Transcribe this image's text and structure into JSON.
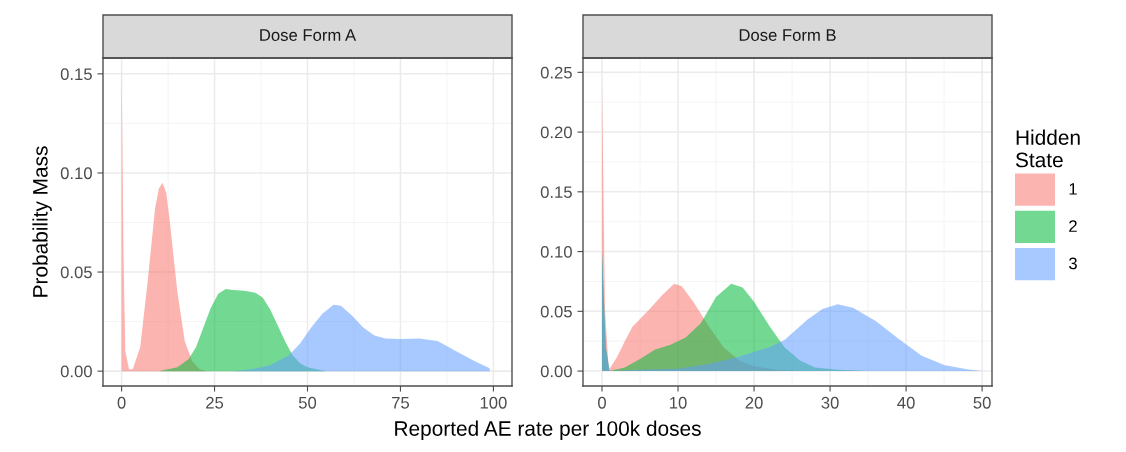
{
  "chart_data": [
    {
      "type": "area",
      "title": "Dose Form A",
      "xlabel": "Reported AE rate per 100k doses",
      "ylabel": "Probability Mass",
      "xlim": [
        -5,
        105
      ],
      "ylim": [
        -0.0075,
        0.158
      ],
      "xticks": [
        0,
        25,
        50,
        75,
        100
      ],
      "yticks": [
        {
          "value": 0,
          "label": "0.00"
        },
        {
          "value": 0.05,
          "label": "0.05"
        },
        {
          "value": 0.1,
          "label": "0.10"
        },
        {
          "value": 0.15,
          "label": "0.15"
        }
      ],
      "grid": true,
      "legend": "right",
      "legend_title": "Hidden State",
      "series": [
        {
          "name": "1",
          "color": "#f8766d",
          "x": [
            0,
            0.5,
            1,
            2,
            3,
            5,
            7,
            9,
            10,
            11,
            12,
            13,
            15,
            17,
            19,
            21,
            23,
            25
          ],
          "values": [
            0.155,
            0.06,
            0.01,
            0.001,
            0.001,
            0.012,
            0.045,
            0.082,
            0.092,
            0.095,
            0.09,
            0.075,
            0.04,
            0.015,
            0.005,
            0.001,
            0,
            0
          ]
        },
        {
          "name": "2",
          "color": "#00ba38",
          "x": [
            10,
            15,
            18,
            20,
            22,
            24,
            26,
            28,
            30,
            33,
            36,
            38,
            40,
            42,
            44,
            46,
            48,
            50,
            55
          ],
          "values": [
            0,
            0.002,
            0.006,
            0.012,
            0.022,
            0.032,
            0.039,
            0.0415,
            0.041,
            0.0405,
            0.0395,
            0.037,
            0.031,
            0.023,
            0.015,
            0.008,
            0.004,
            0.002,
            0
          ]
        },
        {
          "name": "3",
          "color": "#619cff",
          "x": [
            30,
            35,
            40,
            45,
            48,
            51,
            54,
            57,
            59,
            62,
            65,
            68,
            71,
            75,
            80,
            85,
            90,
            95,
            99
          ],
          "values": [
            0,
            0.001,
            0.003,
            0.008,
            0.014,
            0.022,
            0.029,
            0.0335,
            0.033,
            0.028,
            0.022,
            0.018,
            0.0165,
            0.0162,
            0.0165,
            0.0152,
            0.01,
            0.005,
            0.0015
          ]
        }
      ]
    },
    {
      "type": "area",
      "title": "Dose Form B",
      "xlim": [
        -2.5,
        51.3
      ],
      "ylim": [
        -0.0125,
        0.262
      ],
      "xticks": [
        0,
        10,
        20,
        30,
        40,
        50
      ],
      "yticks": [
        {
          "value": 0,
          "label": "0.00"
        },
        {
          "value": 0.05,
          "label": "0.05"
        },
        {
          "value": 0.1,
          "label": "0.10"
        },
        {
          "value": 0.15,
          "label": "0.15"
        },
        {
          "value": 0.2,
          "label": "0.20"
        },
        {
          "value": 0.25,
          "label": "0.25"
        }
      ],
      "grid": true,
      "legend": false,
      "series": [
        {
          "name": "1",
          "color": "#f8766d",
          "x": [
            0,
            0.4,
            0.9,
            1,
            2,
            3,
            4,
            6,
            8,
            9.5,
            10.5,
            12,
            14,
            16,
            18,
            20,
            23,
            26
          ],
          "values": [
            0.24,
            0.05,
            0,
            0.002,
            0.012,
            0.025,
            0.037,
            0.05,
            0.064,
            0.073,
            0.071,
            0.058,
            0.038,
            0.02,
            0.009,
            0.004,
            0.001,
            0
          ]
        },
        {
          "name": "2",
          "color": "#00ba38",
          "x": [
            0,
            0.5,
            1,
            3,
            5,
            7,
            9,
            11,
            13,
            15,
            17,
            18.5,
            20,
            22,
            24,
            26,
            28,
            31,
            35
          ],
          "values": [
            0.1,
            0.02,
            0,
            0.003,
            0.01,
            0.018,
            0.022,
            0.028,
            0.04,
            0.062,
            0.073,
            0.07,
            0.058,
            0.038,
            0.02,
            0.009,
            0.003,
            0.001,
            0
          ]
        },
        {
          "name": "3",
          "color": "#619cff",
          "x": [
            0,
            0.5,
            1,
            5,
            10,
            14,
            18,
            22,
            24,
            27,
            29,
            31,
            33,
            36,
            39,
            42,
            45,
            48,
            50
          ],
          "values": [
            0.1,
            0.02,
            0,
            0.001,
            0.002,
            0.006,
            0.012,
            0.02,
            0.026,
            0.043,
            0.052,
            0.056,
            0.053,
            0.042,
            0.027,
            0.013,
            0.005,
            0.0015,
            0
          ]
        }
      ]
    }
  ]
}
